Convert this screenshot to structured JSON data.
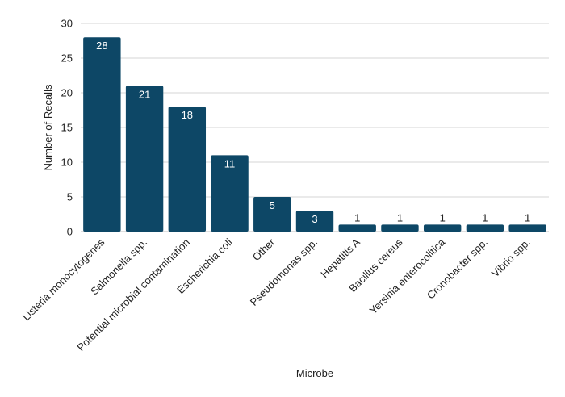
{
  "chart_data": {
    "type": "bar",
    "categories": [
      "Listeria monocytogenes",
      "Salmonella spp.",
      "Potential microbial contamination",
      "Escherichia coli",
      "Other",
      "Pseudomonas spp.",
      "Hepatitis A",
      "Bacillus cereus",
      "Yersinia enterocolitica",
      "Cronobacter spp.",
      "Vibrio spp."
    ],
    "values": [
      28,
      21,
      18,
      11,
      5,
      3,
      1,
      1,
      1,
      1,
      1
    ],
    "title": "",
    "xlabel": "Microbe",
    "ylabel": "Number of Recalls",
    "ylim": [
      0,
      30
    ],
    "yticks": [
      0,
      5,
      10,
      15,
      20,
      25,
      30
    ],
    "grid": true,
    "legend": "none",
    "data_labels": true,
    "colors": {
      "bar": "#0d4766",
      "grid": "#d6d6d6",
      "label_inside": "#ffffff",
      "label_outside": "#222222",
      "text": "#222222"
    }
  }
}
